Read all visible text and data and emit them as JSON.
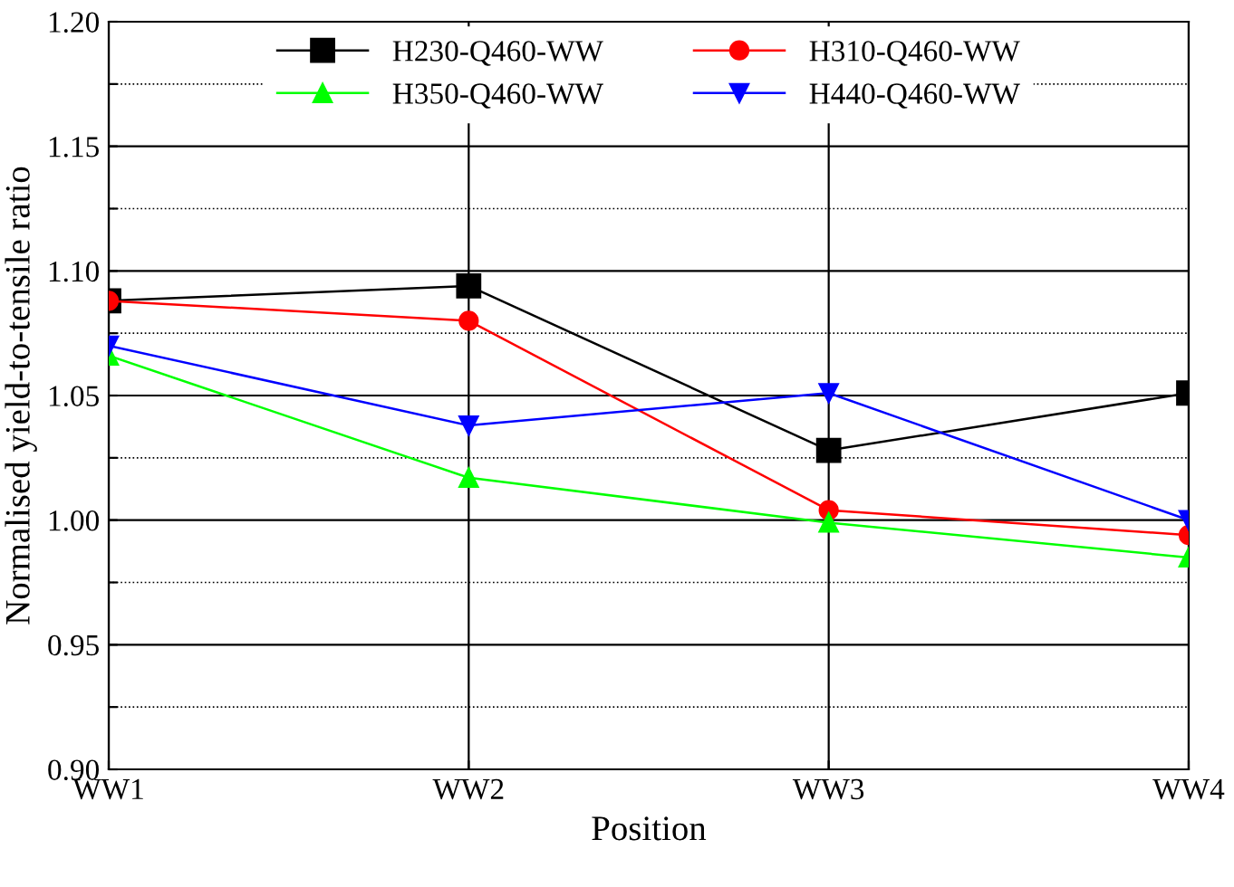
{
  "chart_data": {
    "type": "line",
    "xlabel": "Position",
    "ylabel": "Normalised yield-to-tensile ratio",
    "categories": [
      "WW1",
      "WW2",
      "WW3",
      "WW4"
    ],
    "series": [
      {
        "name": "H230-Q460-WW",
        "color": "#000000",
        "marker": "square",
        "values": [
          1.088,
          1.094,
          1.028,
          1.051
        ]
      },
      {
        "name": "H310-Q460-WW",
        "color": "#ff0000",
        "marker": "circle",
        "values": [
          1.088,
          1.08,
          1.004,
          0.994
        ]
      },
      {
        "name": "H350-Q460-WW",
        "color": "#00ff00",
        "marker": "triangle",
        "values": [
          1.066,
          1.017,
          0.999,
          0.985
        ]
      },
      {
        "name": "H440-Q460-WW",
        "color": "#0000ff",
        "marker": "triangle_down",
        "values": [
          1.07,
          1.038,
          1.051,
          1.0
        ]
      }
    ],
    "ylim": [
      0.9,
      1.2
    ],
    "yticks": [
      "0.90",
      {
        "value": 0.925,
        "label": null
      },
      0.95,
      {
        "value": 0.975,
        "label": null
      },
      "1.00",
      {
        "value": 1.025,
        "label": null
      },
      1.05,
      {
        "value": 1.075,
        "label": null
      },
      "1.10",
      {
        "value": 1.125,
        "label": null
      },
      1.15,
      {
        "value": 1.175,
        "label": null
      },
      "1.20"
    ],
    "grid": true,
    "legend": "top",
    "line_style": "solid"
  }
}
